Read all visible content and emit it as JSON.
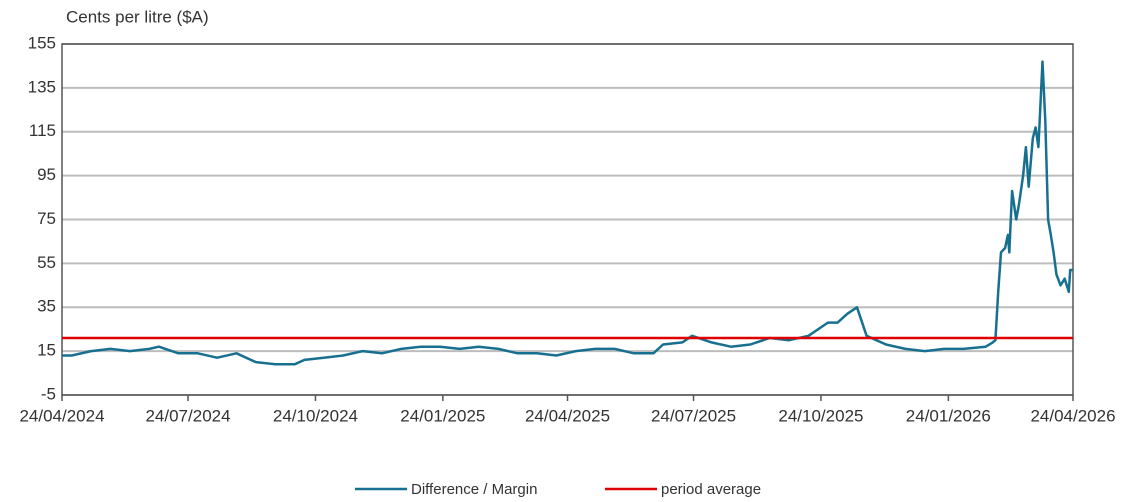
{
  "chart_data": {
    "type": "line",
    "y_label": "Cents per litre ($A)",
    "x": [
      "2024-04-24",
      "2024-05-01",
      "2024-05-15",
      "2024-05-29",
      "2024-06-12",
      "2024-06-26",
      "2024-07-03",
      "2024-07-17",
      "2024-07-31",
      "2024-08-14",
      "2024-08-28",
      "2024-09-11",
      "2024-09-25",
      "2024-10-09",
      "2024-10-16",
      "2024-10-30",
      "2024-11-13",
      "2024-11-27",
      "2024-12-11",
      "2024-12-25",
      "2025-01-08",
      "2025-01-22",
      "2025-02-05",
      "2025-02-19",
      "2025-03-05",
      "2025-03-19",
      "2025-04-02",
      "2025-04-16",
      "2025-04-30",
      "2025-05-14",
      "2025-05-28",
      "2025-06-11",
      "2025-06-25",
      "2025-07-02",
      "2025-07-16",
      "2025-07-23",
      "2025-08-06",
      "2025-08-20",
      "2025-09-03",
      "2025-09-17",
      "2025-10-01",
      "2025-10-15",
      "2025-10-29",
      "2025-11-05",
      "2025-11-12",
      "2025-11-19",
      "2025-11-26",
      "2025-12-10",
      "2025-12-24",
      "2026-01-07",
      "2026-01-21",
      "2026-02-04",
      "2026-02-20",
      "2026-02-25",
      "2026-02-27",
      "2026-03-01",
      "2026-03-03",
      "2026-03-06",
      "2026-03-08",
      "2026-03-09",
      "2026-03-11",
      "2026-03-14",
      "2026-03-16",
      "2026-03-19",
      "2026-03-21",
      "2026-03-23",
      "2026-03-26",
      "2026-03-28",
      "2026-03-30",
      "2026-04-02",
      "2026-04-04",
      "2026-04-06",
      "2026-04-08",
      "2026-04-10",
      "2026-04-12",
      "2026-04-15",
      "2026-04-18",
      "2026-04-21",
      "2026-04-22",
      "2026-04-24"
    ],
    "series": [
      {
        "name": "Difference / Margin",
        "color": "#17708f",
        "values": [
          13,
          13,
          15,
          16,
          15,
          16,
          17,
          14,
          14,
          12,
          14,
          10,
          9,
          9,
          11,
          12,
          13,
          15,
          14,
          16,
          17,
          17,
          16,
          17,
          16,
          14,
          14,
          13,
          15,
          16,
          16,
          14,
          14,
          18,
          19,
          22,
          19,
          17,
          18,
          21,
          20,
          22,
          28,
          28,
          32,
          35,
          22,
          18,
          16,
          15,
          16,
          16,
          17,
          19,
          20,
          42,
          60,
          62,
          68,
          60,
          88,
          75,
          82,
          95,
          108,
          90,
          112,
          117,
          108,
          147,
          120,
          75,
          68,
          60,
          50,
          45,
          48,
          42,
          52,
          52
        ]
      },
      {
        "name": "period average",
        "color": "#e00000",
        "value": 21
      }
    ],
    "xlim": [
      "2024-04-24",
      "2026-04-24"
    ],
    "xticks": [
      {
        "value": "2024-04-24",
        "label": "24/04/2024"
      },
      {
        "value": "2024-07-24",
        "label": "24/07/2024"
      },
      {
        "value": "2024-10-24",
        "label": "24/10/2024"
      },
      {
        "value": "2025-01-24",
        "label": "24/01/2025"
      },
      {
        "value": "2025-04-24",
        "label": "24/04/2025"
      },
      {
        "value": "2025-07-24",
        "label": "24/07/2025"
      },
      {
        "value": "2025-10-24",
        "label": "24/10/2025"
      },
      {
        "value": "2026-01-24",
        "label": "24/01/2026"
      },
      {
        "value": "2026-04-24",
        "label": "24/04/2026"
      }
    ],
    "ylim": [
      -5,
      155
    ],
    "yticks": [
      -5,
      15,
      35,
      55,
      75,
      95,
      115,
      135,
      155
    ],
    "grid": true,
    "legend": "bottom"
  }
}
